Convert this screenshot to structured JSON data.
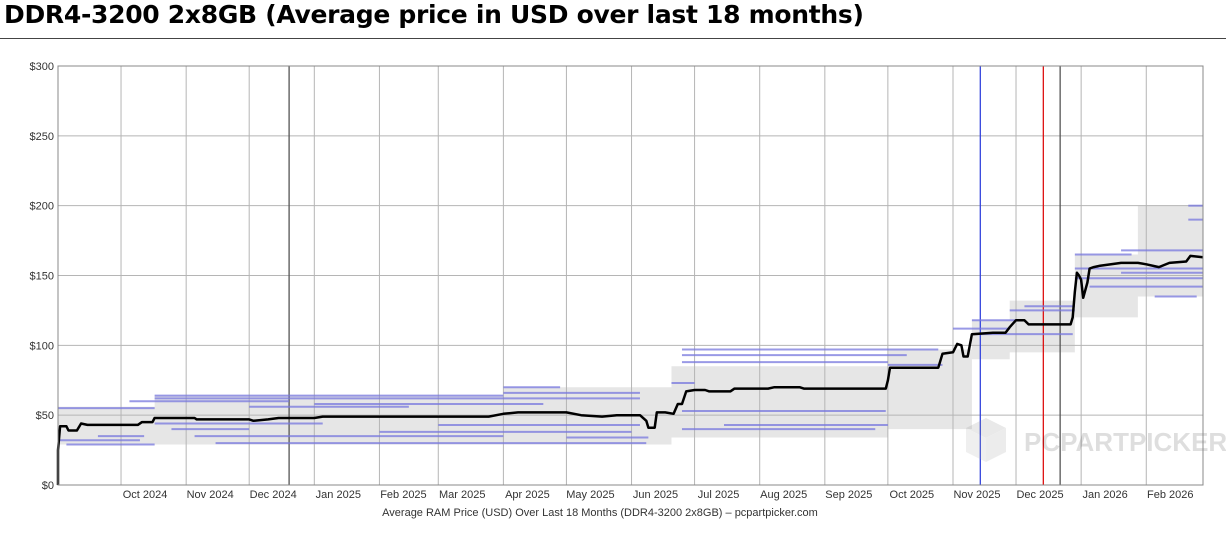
{
  "header": {
    "title": "DDR4-3200 2x8GB (Average price in USD over last 18 months)"
  },
  "chart_data": {
    "type": "line",
    "title": "DDR4-3200 2x8GB (Average price in USD over last 18 months)",
    "xlabel": "Average RAM Price (USD) Over Last 18 Months (DDR4-3200 2x8GB) – pcpartpicker.com",
    "ylabel": "",
    "ylim": [
      0,
      300
    ],
    "y_ticks": [
      0,
      50,
      100,
      150,
      200,
      250,
      300
    ],
    "y_tick_labels": [
      "$0",
      "$50",
      "$100",
      "$150",
      "$200",
      "$250",
      "$300"
    ],
    "x_range": [
      "2024-09-01",
      "2026-02-28"
    ],
    "x_ticks": [
      {
        "date": "2024-10-01",
        "label": "Oct 2024"
      },
      {
        "date": "2024-11-01",
        "label": "Nov 2024"
      },
      {
        "date": "2024-12-01",
        "label": "Dec 2024"
      },
      {
        "date": "2025-01-01",
        "label": "Jan 2025"
      },
      {
        "date": "2025-02-01",
        "label": "Feb 2025"
      },
      {
        "date": "2025-03-01",
        "label": "Mar 2025"
      },
      {
        "date": "2025-04-01",
        "label": "Apr 2025"
      },
      {
        "date": "2025-05-01",
        "label": "May 2025"
      },
      {
        "date": "2025-06-01",
        "label": "Jun 2025"
      },
      {
        "date": "2025-07-01",
        "label": "Jul 2025"
      },
      {
        "date": "2025-08-01",
        "label": "Aug 2025"
      },
      {
        "date": "2025-09-01",
        "label": "Sep 2025"
      },
      {
        "date": "2025-10-01",
        "label": "Oct 2025"
      },
      {
        "date": "2025-11-01",
        "label": "Nov 2025"
      },
      {
        "date": "2025-12-01",
        "label": "Dec 2025"
      },
      {
        "date": "2026-01-01",
        "label": "Jan 2026"
      },
      {
        "date": "2026-02-01",
        "label": "Feb 2026"
      }
    ],
    "grid": true,
    "watermark": "PCPARTPICKER",
    "vertical_markers": [
      {
        "date": "2024-12-20",
        "color": "#555555"
      },
      {
        "date": "2025-11-14",
        "color": "#3344dd"
      },
      {
        "date": "2025-12-14",
        "color": "#dd1111"
      },
      {
        "date": "2025-12-22",
        "color": "#555555"
      }
    ],
    "series": [
      {
        "color": "#000000",
        "points": [
          [
            "2024-09-01",
            0
          ],
          [
            "2024-09-01",
            25
          ],
          [
            "2024-09-02",
            42
          ],
          [
            "2024-09-05",
            42
          ],
          [
            "2024-09-06",
            39
          ],
          [
            "2024-09-10",
            39
          ],
          [
            "2024-09-12",
            44
          ],
          [
            "2024-09-15",
            43
          ],
          [
            "2024-09-25",
            43
          ],
          [
            "2024-10-01",
            43
          ],
          [
            "2024-10-09",
            43
          ],
          [
            "2024-10-11",
            45
          ],
          [
            "2024-10-16",
            45
          ],
          [
            "2024-10-17",
            48
          ],
          [
            "2024-11-05",
            48
          ],
          [
            "2024-11-06",
            47
          ],
          [
            "2024-12-01",
            47
          ],
          [
            "2024-12-03",
            46
          ],
          [
            "2024-12-10",
            47
          ],
          [
            "2024-12-15",
            48
          ],
          [
            "2025-01-01",
            48
          ],
          [
            "2025-01-05",
            49
          ],
          [
            "2025-03-25",
            49
          ],
          [
            "2025-04-01",
            51
          ],
          [
            "2025-04-08",
            52
          ],
          [
            "2025-05-01",
            52
          ],
          [
            "2025-05-08",
            50
          ],
          [
            "2025-05-18",
            49
          ],
          [
            "2025-05-25",
            50
          ],
          [
            "2025-06-05",
            50
          ],
          [
            "2025-06-08",
            46
          ],
          [
            "2025-06-09",
            41
          ],
          [
            "2025-06-12",
            41
          ],
          [
            "2025-06-13",
            52
          ],
          [
            "2025-06-17",
            52
          ],
          [
            "2025-06-21",
            51
          ],
          [
            "2025-06-23",
            58
          ],
          [
            "2025-06-25",
            58
          ],
          [
            "2025-06-27",
            67
          ],
          [
            "2025-07-01",
            68
          ],
          [
            "2025-07-06",
            68
          ],
          [
            "2025-07-08",
            67
          ],
          [
            "2025-07-18",
            67
          ],
          [
            "2025-07-20",
            69
          ],
          [
            "2025-08-05",
            69
          ],
          [
            "2025-08-08",
            70
          ],
          [
            "2025-08-20",
            70
          ],
          [
            "2025-08-22",
            69
          ],
          [
            "2025-09-01",
            69
          ],
          [
            "2025-09-30",
            69
          ],
          [
            "2025-10-01",
            75
          ],
          [
            "2025-10-02",
            84
          ],
          [
            "2025-10-25",
            84
          ],
          [
            "2025-10-27",
            94
          ],
          [
            "2025-11-01",
            95
          ],
          [
            "2025-11-03",
            101
          ],
          [
            "2025-11-05",
            100
          ],
          [
            "2025-11-06",
            92
          ],
          [
            "2025-11-08",
            92
          ],
          [
            "2025-11-10",
            108
          ],
          [
            "2025-11-20",
            109
          ],
          [
            "2025-11-26",
            109
          ],
          [
            "2025-11-28",
            113
          ],
          [
            "2025-12-01",
            118
          ],
          [
            "2025-12-05",
            118
          ],
          [
            "2025-12-07",
            115
          ],
          [
            "2025-12-15",
            115
          ],
          [
            "2025-12-27",
            115
          ],
          [
            "2025-12-28",
            120
          ],
          [
            "2025-12-29",
            138
          ],
          [
            "2025-12-30",
            152
          ],
          [
            "2025-12-31",
            150
          ],
          [
            "2026-01-01",
            147
          ],
          [
            "2026-01-02",
            134
          ],
          [
            "2026-01-04",
            145
          ],
          [
            "2026-01-05",
            155
          ],
          [
            "2026-01-07",
            156
          ],
          [
            "2026-01-10",
            157
          ],
          [
            "2026-01-20",
            159
          ],
          [
            "2026-01-28",
            159
          ],
          [
            "2026-02-01",
            158
          ],
          [
            "2026-02-07",
            156
          ],
          [
            "2026-02-12",
            159
          ],
          [
            "2026-02-20",
            160
          ],
          [
            "2026-02-22",
            164
          ],
          [
            "2026-02-28",
            163
          ]
        ]
      }
    ],
    "range_band": [
      [
        "2024-09-01",
        29,
        56
      ],
      [
        "2024-10-17",
        29,
        64
      ],
      [
        "2025-04-01",
        29,
        70
      ],
      [
        "2025-06-20",
        34,
        85
      ],
      [
        "2025-10-01",
        40,
        97
      ],
      [
        "2025-11-10",
        90,
        118
      ],
      [
        "2025-11-28",
        95,
        132
      ],
      [
        "2025-12-29",
        120,
        165
      ],
      [
        "2026-01-28",
        135,
        200
      ],
      [
        "2026-02-28",
        135,
        200
      ]
    ],
    "retailer_lines": [
      {
        "start": "2024-09-01",
        "end": "2024-10-17",
        "value": 55
      },
      {
        "start": "2024-09-01",
        "end": "2024-10-10",
        "value": 32
      },
      {
        "start": "2024-09-05",
        "end": "2024-10-17",
        "value": 29
      },
      {
        "start": "2024-09-20",
        "end": "2024-10-12",
        "value": 35
      },
      {
        "start": "2024-10-05",
        "end": "2024-12-20",
        "value": 60
      },
      {
        "start": "2024-10-17",
        "end": "2025-04-01",
        "value": 64
      },
      {
        "start": "2024-10-17",
        "end": "2025-06-05",
        "value": 62
      },
      {
        "start": "2024-10-17",
        "end": "2025-01-05",
        "value": 44
      },
      {
        "start": "2024-10-25",
        "end": "2024-12-01",
        "value": 40
      },
      {
        "start": "2024-11-05",
        "end": "2025-04-01",
        "value": 35
      },
      {
        "start": "2024-11-15",
        "end": "2025-06-08",
        "value": 30
      },
      {
        "start": "2024-12-01",
        "end": "2025-02-15",
        "value": 56
      },
      {
        "start": "2025-01-01",
        "end": "2025-04-20",
        "value": 58
      },
      {
        "start": "2025-02-01",
        "end": "2025-06-01",
        "value": 38
      },
      {
        "start": "2025-03-01",
        "end": "2025-06-05",
        "value": 43
      },
      {
        "start": "2025-04-01",
        "end": "2025-04-28",
        "value": 70
      },
      {
        "start": "2025-04-01",
        "end": "2025-06-05",
        "value": 66
      },
      {
        "start": "2025-05-01",
        "end": "2025-06-09",
        "value": 34
      },
      {
        "start": "2025-06-20",
        "end": "2025-07-01",
        "value": 73
      },
      {
        "start": "2025-06-25",
        "end": "2025-10-25",
        "value": 97
      },
      {
        "start": "2025-06-25",
        "end": "2025-10-10",
        "value": 93
      },
      {
        "start": "2025-06-25",
        "end": "2025-10-01",
        "value": 88
      },
      {
        "start": "2025-06-25",
        "end": "2025-09-30",
        "value": 53
      },
      {
        "start": "2025-06-25",
        "end": "2025-09-25",
        "value": 40
      },
      {
        "start": "2025-07-15",
        "end": "2025-10-01",
        "value": 43
      },
      {
        "start": "2025-10-01",
        "end": "2025-10-27",
        "value": 86
      },
      {
        "start": "2025-11-01",
        "end": "2025-11-28",
        "value": 112
      },
      {
        "start": "2025-11-10",
        "end": "2025-12-05",
        "value": 118
      },
      {
        "start": "2025-11-10",
        "end": "2025-12-28",
        "value": 108
      },
      {
        "start": "2025-11-28",
        "end": "2025-12-29",
        "value": 125
      },
      {
        "start": "2025-12-05",
        "end": "2025-12-29",
        "value": 128
      },
      {
        "start": "2025-12-29",
        "end": "2026-01-25",
        "value": 165
      },
      {
        "start": "2025-12-29",
        "end": "2026-02-28",
        "value": 155
      },
      {
        "start": "2025-12-29",
        "end": "2026-02-28",
        "value": 148
      },
      {
        "start": "2026-01-05",
        "end": "2026-02-28",
        "value": 142
      },
      {
        "start": "2026-01-20",
        "end": "2026-02-28",
        "value": 168
      },
      {
        "start": "2026-01-20",
        "end": "2026-02-28",
        "value": 152
      },
      {
        "start": "2026-02-05",
        "end": "2026-02-25",
        "value": 135
      },
      {
        "start": "2026-02-21",
        "end": "2026-02-28",
        "value": 200
      },
      {
        "start": "2026-02-21",
        "end": "2026-02-28",
        "value": 190
      }
    ]
  }
}
